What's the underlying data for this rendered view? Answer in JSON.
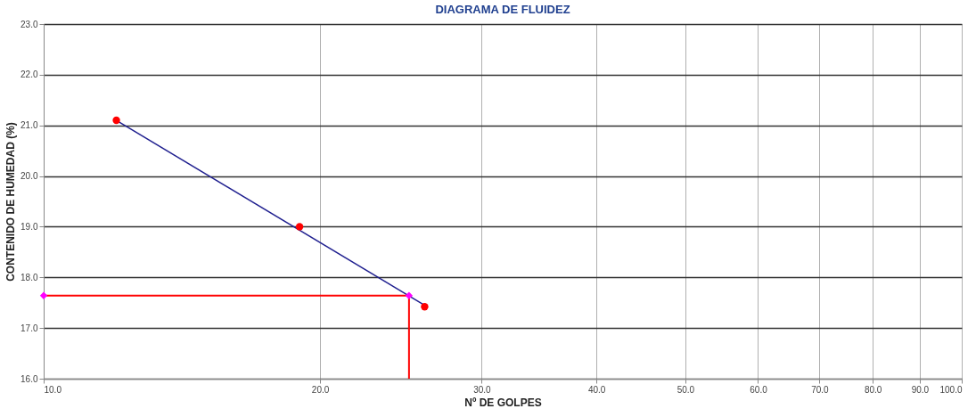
{
  "chart_data": {
    "type": "scatter",
    "title": "DIAGRAMA DE FLUIDEZ",
    "xlabel": "Nº DE GOLPES",
    "ylabel": "CONTENIDO DE HUMEDAD (%)",
    "log": "x",
    "grid": true,
    "xlim": [
      10,
      100
    ],
    "ylim": [
      16,
      23
    ],
    "xticks": [
      {
        "value": 10,
        "label": "10.0"
      },
      {
        "value": 20,
        "label": "20.0"
      },
      {
        "value": 30,
        "label": "30.0"
      },
      {
        "value": 40,
        "label": "40.0"
      },
      {
        "value": 50,
        "label": "50.0"
      },
      {
        "value": 60,
        "label": "60.0"
      },
      {
        "value": 70,
        "label": "70.0"
      },
      {
        "value": 80,
        "label": "80.0"
      },
      {
        "value": 90,
        "label": "90.0"
      },
      {
        "value": 100,
        "label": "100.0"
      }
    ],
    "yticks": [
      {
        "value": 16,
        "label": "16.0"
      },
      {
        "value": 17,
        "label": "17.0"
      },
      {
        "value": 18,
        "label": "18.0"
      },
      {
        "value": 19,
        "label": "19.0"
      },
      {
        "value": 20,
        "label": "20.0"
      },
      {
        "value": 21,
        "label": "21.0"
      },
      {
        "value": 22,
        "label": "22.0"
      },
      {
        "value": 23,
        "label": "23.0"
      }
    ],
    "series": [
      {
        "type": "line",
        "color": "#1f1f8f",
        "marker": "none",
        "x": [
          12,
          26
        ],
        "values": [
          21.1,
          17.45
        ]
      },
      {
        "type": "line",
        "color": "#ff0000",
        "marker": "none",
        "x": [
          10,
          25
        ],
        "values": [
          17.64,
          17.64
        ]
      },
      {
        "type": "line",
        "color": "#ff0000",
        "marker": "none",
        "x": [
          25,
          25
        ],
        "values": [
          16,
          17.64
        ]
      },
      {
        "color": "#ff0000",
        "marker": "circle",
        "x": [
          12,
          19,
          26
        ],
        "values": [
          21.1,
          19.0,
          17.42
        ]
      },
      {
        "color": "#ff00ff",
        "marker": "diamond",
        "x": [
          10,
          25
        ],
        "values": [
          17.64,
          17.64
        ]
      }
    ]
  }
}
